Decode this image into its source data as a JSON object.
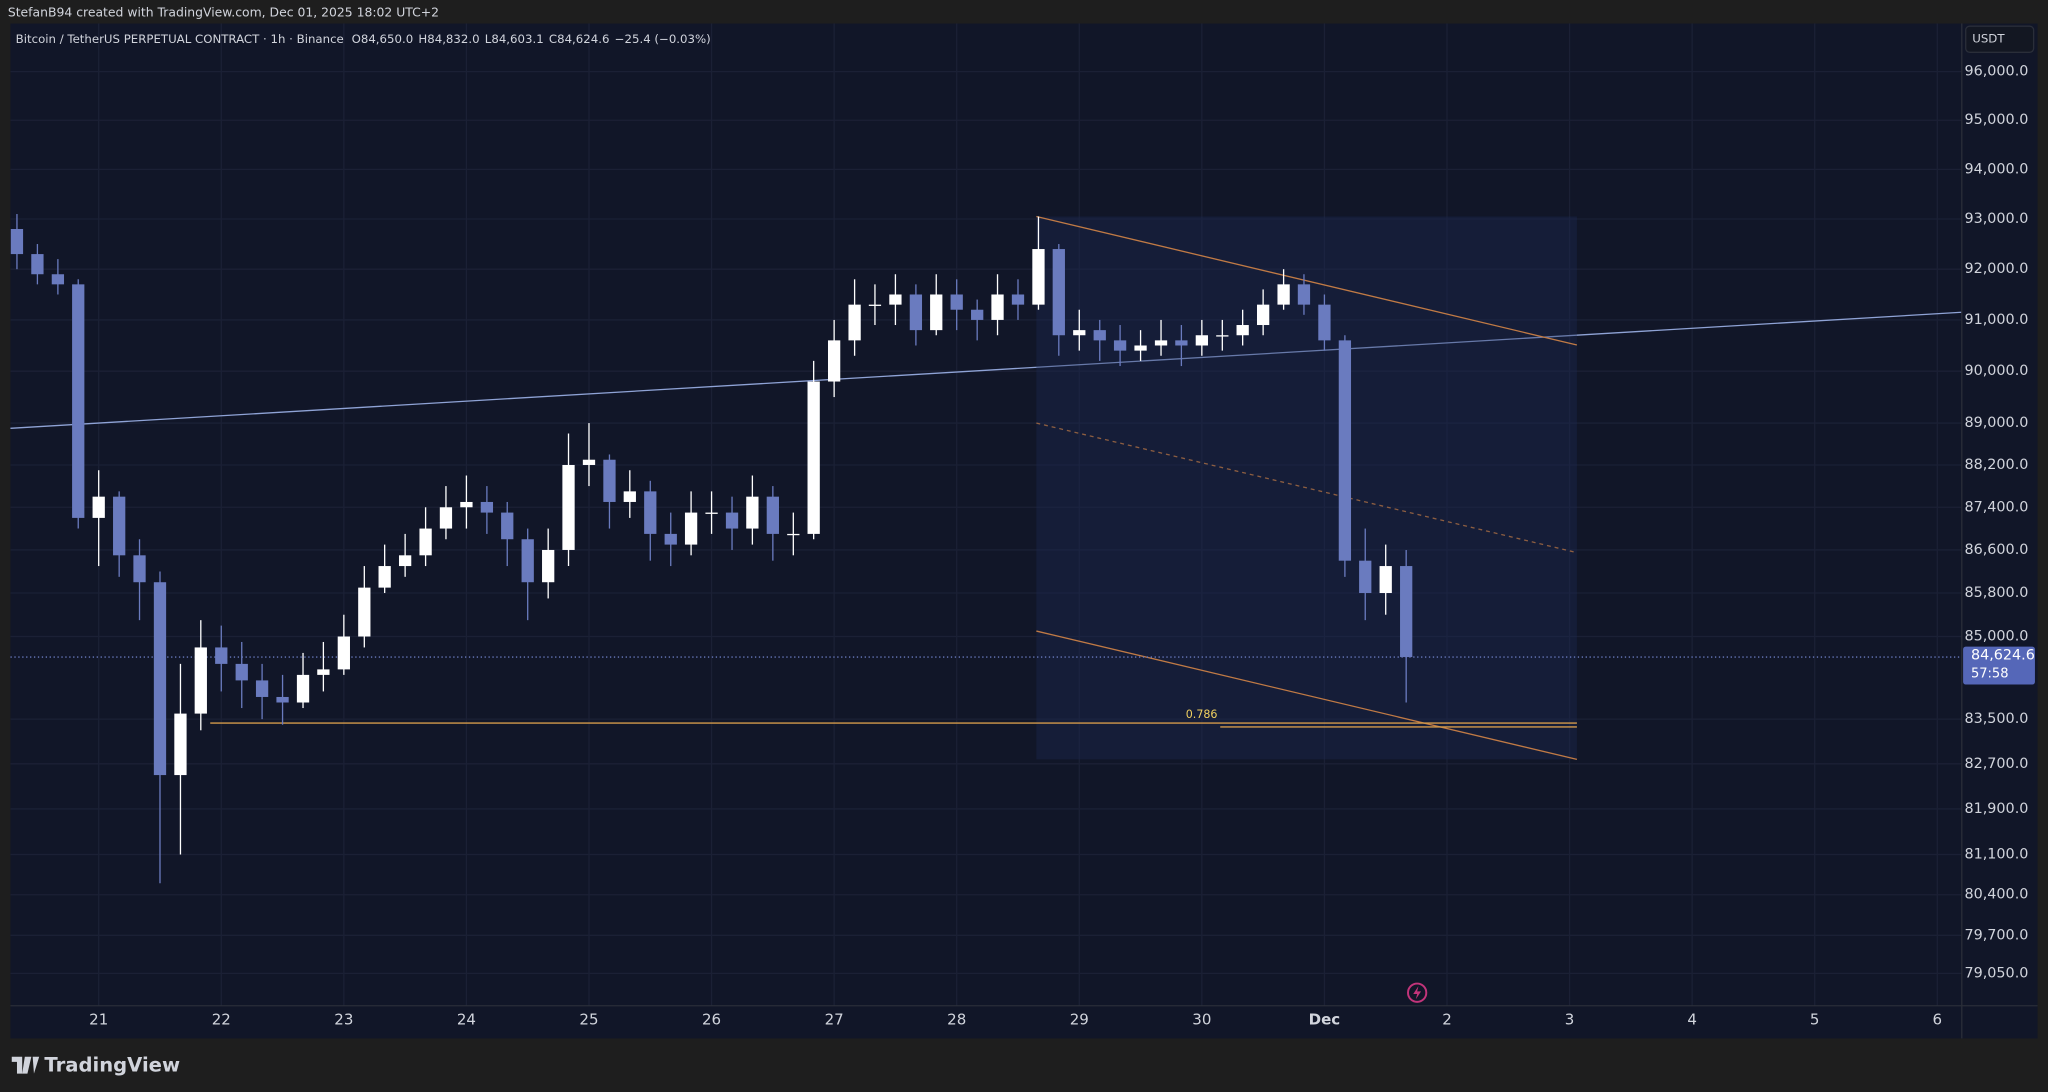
{
  "header": "StefanB94 created with TradingView.com, Dec 01, 2025 18:02 UTC+2",
  "footer_brand": "TradingView",
  "chart_data": {
    "type": "candlestick",
    "title": "Bitcoin / TetherUS PERPETUAL CONTRACT · 1h · Binance",
    "quote": [
      "O84,650.0",
      "H84,832.0",
      "L84,603.1",
      "C84,624.6",
      "−25.4 (−0.03%)"
    ],
    "currency": "USDT",
    "up_color": "#ffffff",
    "down_color": "#6a7bbf",
    "log_scale": true,
    "grid": true,
    "x": [
      20.333,
      20.5,
      20.667,
      20.833,
      21,
      21.167,
      21.333,
      21.5,
      21.667,
      21.833,
      22,
      22.167,
      22.333,
      22.5,
      22.667,
      22.833,
      23,
      23.167,
      23.333,
      23.5,
      23.667,
      23.833,
      24,
      24.167,
      24.333,
      24.5,
      24.667,
      24.833,
      25,
      25.167,
      25.333,
      25.5,
      25.667,
      25.833,
      26,
      26.167,
      26.333,
      26.5,
      26.667,
      26.833,
      27,
      27.167,
      27.333,
      27.5,
      27.667,
      27.833,
      28,
      28.167,
      28.333,
      28.5,
      28.667,
      28.833,
      29,
      29.167,
      29.333,
      29.5,
      29.667,
      29.833,
      30,
      30.167,
      30.333,
      30.5,
      30.667,
      30.833,
      31,
      31.167,
      31.333,
      31.5,
      31.667
    ],
    "open": [
      92800,
      92300,
      91900,
      91700,
      87200,
      87600,
      86500,
      86000,
      82500,
      83600,
      84800,
      84500,
      84200,
      83900,
      83800,
      84300,
      84400,
      85000,
      85900,
      86300,
      86500,
      87000,
      87400,
      87500,
      87300,
      86800,
      86000,
      86600,
      88200,
      88300,
      87500,
      87700,
      86900,
      86700,
      87300,
      87300,
      87000,
      87600,
      86900,
      86900,
      89800,
      90600,
      91300,
      91300,
      91500,
      90800,
      91500,
      91200,
      91000,
      91500,
      91300,
      92400,
      90700,
      90800,
      90600,
      90400,
      90500,
      90600,
      90500,
      90700,
      90700,
      90900,
      91300,
      91700,
      91300,
      90600,
      86400,
      85800,
      86300
    ],
    "high": [
      93100,
      92500,
      92200,
      91800,
      88100,
      87700,
      86800,
      86200,
      84500,
      85300,
      85200,
      84900,
      84500,
      84300,
      84700,
      84900,
      85400,
      86300,
      86700,
      86900,
      87400,
      87800,
      88000,
      87800,
      87500,
      87000,
      87000,
      88800,
      89000,
      88400,
      88100,
      87900,
      87300,
      87700,
      87700,
      87600,
      88000,
      87800,
      87300,
      90200,
      91000,
      91800,
      91700,
      91900,
      91700,
      91900,
      91800,
      91400,
      91900,
      91800,
      93050,
      92500,
      91200,
      91000,
      90900,
      90800,
      91000,
      90900,
      91000,
      91000,
      91200,
      91600,
      92000,
      91900,
      91500,
      90700,
      87000,
      86700,
      86600
    ],
    "low": [
      92000,
      91700,
      91500,
      87000,
      86300,
      86100,
      85300,
      80600,
      81100,
      83300,
      84000,
      83700,
      83500,
      83400,
      83700,
      84000,
      84300,
      84800,
      85800,
      86100,
      86300,
      86800,
      87000,
      86900,
      86300,
      85300,
      85700,
      86300,
      87800,
      87000,
      87200,
      86400,
      86300,
      86500,
      86900,
      86600,
      86700,
      86400,
      86500,
      86800,
      89500,
      90300,
      90900,
      90900,
      90500,
      90700,
      90800,
      90600,
      90700,
      91000,
      91200,
      90300,
      90400,
      90200,
      90100,
      90200,
      90300,
      90100,
      90300,
      90400,
      90500,
      90700,
      91200,
      91100,
      90400,
      86100,
      85300,
      85400,
      83800
    ],
    "close": [
      92300,
      91900,
      91700,
      87200,
      87600,
      86500,
      86000,
      82500,
      83600,
      84800,
      84500,
      84200,
      83900,
      83800,
      84300,
      84400,
      85000,
      85900,
      86300,
      86500,
      87000,
      87400,
      87500,
      87300,
      86800,
      86000,
      86600,
      88200,
      88300,
      87500,
      87700,
      86900,
      86700,
      87300,
      87300,
      87000,
      87600,
      86900,
      86900,
      89800,
      90600,
      91300,
      91300,
      91500,
      90800,
      91500,
      91200,
      91000,
      91500,
      91300,
      92400,
      90700,
      90800,
      90600,
      90400,
      90500,
      90600,
      90500,
      90700,
      90700,
      90900,
      91300,
      91700,
      91300,
      90600,
      86400,
      85800,
      86300,
      84624.6
    ],
    "xlim": [
      20.28,
      36.2
    ],
    "xticks": [
      21,
      22,
      23,
      24,
      25,
      26,
      27,
      28,
      29,
      30,
      {
        "value": 31,
        "label": "Dec"
      },
      {
        "value": 32,
        "label": "2"
      },
      {
        "value": 33,
        "label": "3"
      },
      {
        "value": 34,
        "label": "4"
      },
      {
        "value": 35,
        "label": "5"
      },
      {
        "value": 36,
        "label": "6"
      }
    ],
    "ylim": [
      78500,
      97000
    ],
    "yticks": [
      {
        "value": 96000,
        "label": "96,000.0"
      },
      {
        "value": 95000,
        "label": "95,000.0"
      },
      {
        "value": 94000,
        "label": "94,000.0"
      },
      {
        "value": 93000,
        "label": "93,000.0"
      },
      {
        "value": 92000,
        "label": "92,000.0"
      },
      {
        "value": 91000,
        "label": "91,000.0"
      },
      {
        "value": 90000,
        "label": "90,000.0"
      },
      {
        "value": 89000,
        "label": "89,000.0"
      },
      {
        "value": 88200,
        "label": "88,200.0"
      },
      {
        "value": 87400,
        "label": "87,400.0"
      },
      {
        "value": 86600,
        "label": "86,600.0"
      },
      {
        "value": 85800,
        "label": "85,800.0"
      },
      {
        "value": 85000,
        "label": "85,000.0"
      },
      {
        "value": 83500,
        "label": "83,500.0"
      },
      {
        "value": 82700,
        "label": "82,700.0"
      },
      {
        "value": 81900,
        "label": "81,900.0"
      },
      {
        "value": 81100,
        "label": "81,100.0"
      },
      {
        "value": 80400,
        "label": "80,400.0"
      },
      {
        "value": 79700,
        "label": "79,700.0"
      },
      {
        "value": 79050,
        "label": "79,050.0"
      }
    ],
    "last_price": {
      "value": 84624.6,
      "label": "84,624.6"
    },
    "countdown": "57:58",
    "trendline": {
      "x": [
        20.28,
        36.2
      ],
      "y": [
        88900,
        91150
      ],
      "color": "#8fa3d6"
    },
    "channel": {
      "x": [
        28.65,
        33.06
      ],
      "upper": [
        93050,
        90510
      ],
      "middle": [
        89000,
        86550
      ],
      "lower": [
        85100,
        82780
      ],
      "color": "#c07a45"
    },
    "fib": {
      "label": "0.786",
      "color": "#d49a4a",
      "lines": [
        {
          "x": [
            21.91,
            33.06
          ],
          "y": 83430
        },
        {
          "x": [
            30.15,
            33.06
          ],
          "y": 83360
        }
      ]
    }
  }
}
